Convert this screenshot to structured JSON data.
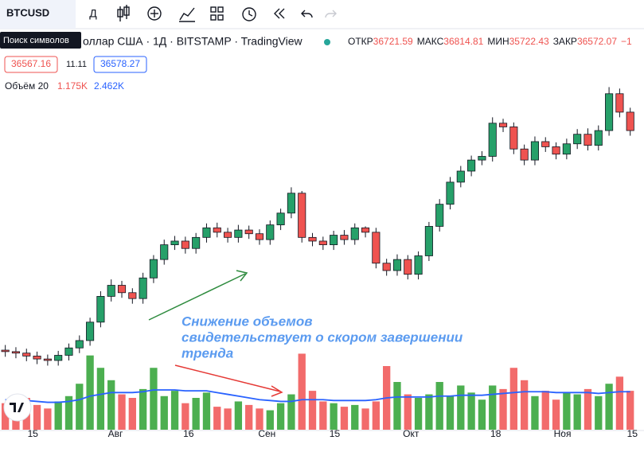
{
  "toolbar": {
    "symbol": "BTCUSD",
    "tooltip": "Поиск символов",
    "interval": "Д"
  },
  "legend": {
    "title": "оллар США · 1Д · BITSTAMP · TradingView",
    "ohlc": [
      {
        "label": "ОТКР",
        "value": 36721.59
      },
      {
        "label": "МАКС",
        "value": 36814.81
      },
      {
        "label": "МИН",
        "value": 35722.43
      },
      {
        "label": "ЗАКР",
        "value": 36572.07
      }
    ],
    "change": "−1",
    "bid": 36567.16,
    "spread": 11.11,
    "ask": 36578.27,
    "volume_label": "Объём 20",
    "volume_values": [
      "1.175K",
      "2.462K"
    ]
  },
  "chart_data": {
    "type": "candlestick",
    "annotation": [
      "Снижение объемов",
      "свидетельствует о скором завершении",
      "тренда"
    ],
    "ylim": [
      20400,
      74400
    ],
    "vlim": [
      0,
      4500
    ],
    "xlim": [
      -0.5,
      60.3
    ],
    "xticks": [
      {
        "value": 2.6,
        "label": "15"
      },
      {
        "value": 10.4,
        "label": "Авг"
      },
      {
        "value": 17.3,
        "label": "16"
      },
      {
        "value": 24.7,
        "label": "Сен"
      },
      {
        "value": 31.1,
        "label": "15"
      },
      {
        "value": 38.3,
        "label": "Окт"
      },
      {
        "value": 46.3,
        "label": "18"
      },
      {
        "value": 52.6,
        "label": "Ноя"
      },
      {
        "value": 59.2,
        "label": "15"
      }
    ],
    "up_color": "#26a069",
    "down_color": "#ef5350",
    "volume_up_color": "#4caf50",
    "volume_down_color": "#f26b6b",
    "ma_color": "#2962ff",
    "open": [
      31200,
      31000,
      30800,
      30400,
      30000,
      29800,
      30500,
      31500,
      32500,
      35000,
      38500,
      40000,
      39000,
      38200,
      41000,
      43500,
      45500,
      46000,
      45000,
      46500,
      47800,
      47200,
      46500,
      47500,
      47000,
      46200,
      48200,
      49800,
      52500,
      46500,
      46000,
      45500,
      46800,
      46200,
      47800,
      47200,
      43000,
      42000,
      43500,
      41500,
      44000,
      48000,
      51000,
      54000,
      55500,
      57000,
      57500,
      62000,
      61500,
      58500,
      57000,
      59500,
      58800,
      57800,
      59200,
      60500,
      59000,
      61000,
      66000,
      63500
    ],
    "high": [
      31900,
      31600,
      31400,
      31000,
      30600,
      31100,
      32100,
      33200,
      35600,
      39200,
      40800,
      40600,
      39600,
      41700,
      44100,
      46200,
      46700,
      46600,
      47100,
      48400,
      48500,
      47800,
      48200,
      48100,
      47600,
      48800,
      50400,
      53300,
      52800,
      47100,
      46600,
      47400,
      47500,
      48400,
      48000,
      47800,
      43600,
      44200,
      44100,
      44600,
      48600,
      51700,
      54700,
      56200,
      57600,
      58200,
      62800,
      62600,
      62100,
      59100,
      60200,
      60100,
      59400,
      59900,
      61200,
      61300,
      61700,
      66900,
      66700,
      64100
    ],
    "low": [
      30300,
      30100,
      29700,
      29300,
      29100,
      29100,
      29800,
      30800,
      31800,
      34300,
      37800,
      38300,
      37500,
      37500,
      40300,
      42800,
      44800,
      44300,
      44300,
      45800,
      46500,
      45800,
      45800,
      46300,
      45500,
      45500,
      47500,
      49100,
      45800,
      45300,
      44800,
      44800,
      45500,
      45500,
      46500,
      42300,
      41300,
      41300,
      40800,
      40800,
      43300,
      47300,
      50300,
      53300,
      54800,
      56300,
      56800,
      60800,
      57800,
      56300,
      56300,
      58100,
      57100,
      57100,
      58500,
      58300,
      58300,
      60300,
      62800,
      60300
    ],
    "close": [
      31000,
      30800,
      30400,
      30000,
      29800,
      30500,
      31500,
      32500,
      35000,
      38500,
      40000,
      39000,
      38200,
      41000,
      43500,
      45500,
      46000,
      45000,
      46500,
      47800,
      47200,
      46500,
      47500,
      47000,
      46200,
      48200,
      49800,
      52500,
      46500,
      46000,
      45500,
      46800,
      46200,
      47800,
      47200,
      43000,
      42000,
      43500,
      41500,
      44000,
      48000,
      51000,
      54000,
      55500,
      57000,
      57500,
      62000,
      61500,
      58500,
      57000,
      59500,
      58800,
      57800,
      59200,
      60500,
      59000,
      61000,
      66000,
      63500,
      61000
    ],
    "volume": [
      1500,
      1300,
      1800,
      1400,
      1200,
      1600,
      1900,
      2600,
      4200,
      3500,
      2800,
      2000,
      1800,
      2300,
      3500,
      1900,
      2200,
      1500,
      1800,
      2100,
      1300,
      1200,
      1600,
      1400,
      1200,
      1100,
      1500,
      2000,
      4300,
      2200,
      1600,
      1500,
      1300,
      1400,
      1200,
      1600,
      3600,
      2700,
      2000,
      1800,
      2000,
      2700,
      1900,
      2500,
      2100,
      1700,
      2500,
      2300,
      3500,
      2800,
      1900,
      2200,
      1700,
      2100,
      2000,
      2300,
      1900,
      2600,
      3000,
      2200
    ],
    "volume_ma": [
      1700,
      1650,
      1650,
      1600,
      1550,
      1550,
      1600,
      1700,
      1900,
      2000,
      2100,
      2100,
      2100,
      2150,
      2250,
      2250,
      2250,
      2200,
      2200,
      2200,
      2100,
      2000,
      1900,
      1800,
      1700,
      1650,
      1600,
      1600,
      1700,
      1700,
      1700,
      1650,
      1650,
      1650,
      1650,
      1700,
      1800,
      1850,
      1850,
      1850,
      1850,
      1900,
      1900,
      1950,
      1950,
      1950,
      2000,
      2050,
      2100,
      2150,
      2150,
      2150,
      2100,
      2100,
      2100,
      2100,
      2050,
      2100,
      2150,
      2150
    ]
  }
}
